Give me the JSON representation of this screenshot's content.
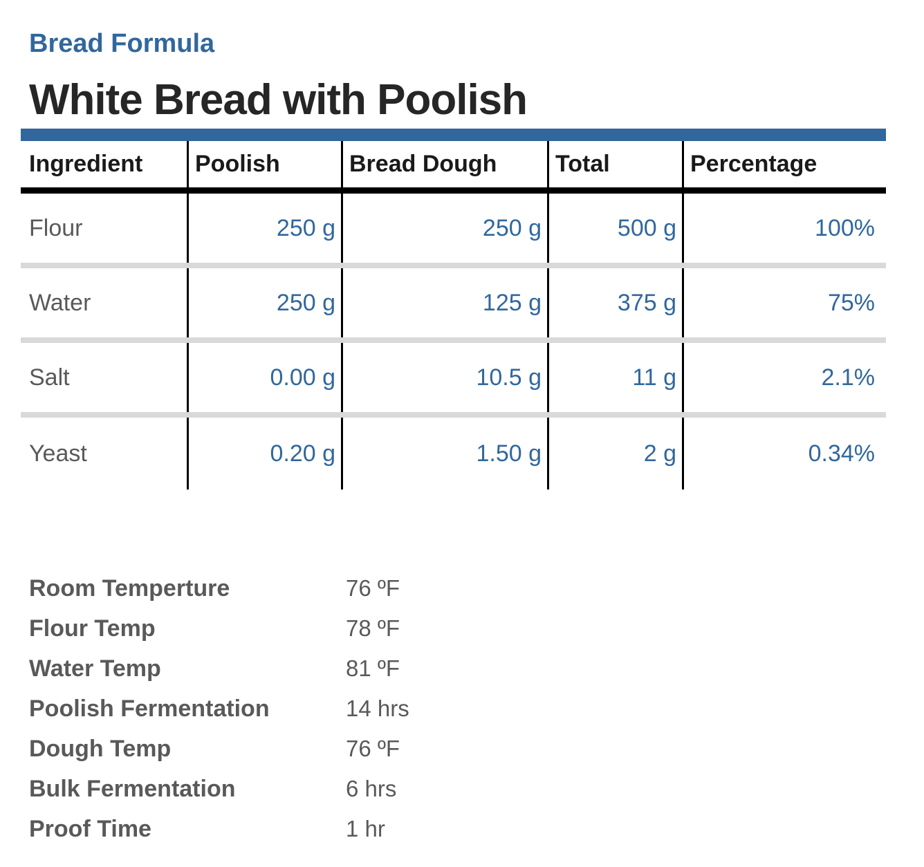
{
  "document": {
    "kicker": "Bread Formula",
    "title": "White Bread with Poolish"
  },
  "table": {
    "columns": [
      "Ingredient",
      "Poolish",
      "Bread Dough",
      "Total",
      "Percentage"
    ],
    "rows": [
      {
        "ingredient": "Flour",
        "poolish": "250 g",
        "bread_dough": "250 g",
        "total": "500 g",
        "percentage": "100%"
      },
      {
        "ingredient": "Water",
        "poolish": "250 g",
        "bread_dough": "125 g",
        "total": "375 g",
        "percentage": "75%"
      },
      {
        "ingredient": "Salt",
        "poolish": "0.00 g",
        "bread_dough": "10.5 g",
        "total": "11 g",
        "percentage": "2.1%"
      },
      {
        "ingredient": "Yeast",
        "poolish": "0.20 g",
        "bread_dough": "1.50 g",
        "total": "2 g",
        "percentage": "0.34%"
      }
    ]
  },
  "details": [
    {
      "label": "Room Temperture",
      "value": "76 ºF"
    },
    {
      "label": "Flour Temp",
      "value": "78 ºF"
    },
    {
      "label": "Water Temp",
      "value": "81 ºF"
    },
    {
      "label": "Poolish Fermentation",
      "value": "14 hrs"
    },
    {
      "label": "Dough Temp",
      "value": "76 ºF"
    },
    {
      "label": "Bulk Fermentation",
      "value": "6 hrs"
    },
    {
      "label": "Proof Time",
      "value": "1 hr"
    }
  ],
  "colors": {
    "accent_blue": "#31679D",
    "number_text_blue": "#31679D",
    "title_black": "#262626",
    "header_text_black": "#1a1a1a",
    "body_text_gray": "#595959",
    "row_divider_gray": "#D9D9D9",
    "table_line_black": "#000000"
  }
}
